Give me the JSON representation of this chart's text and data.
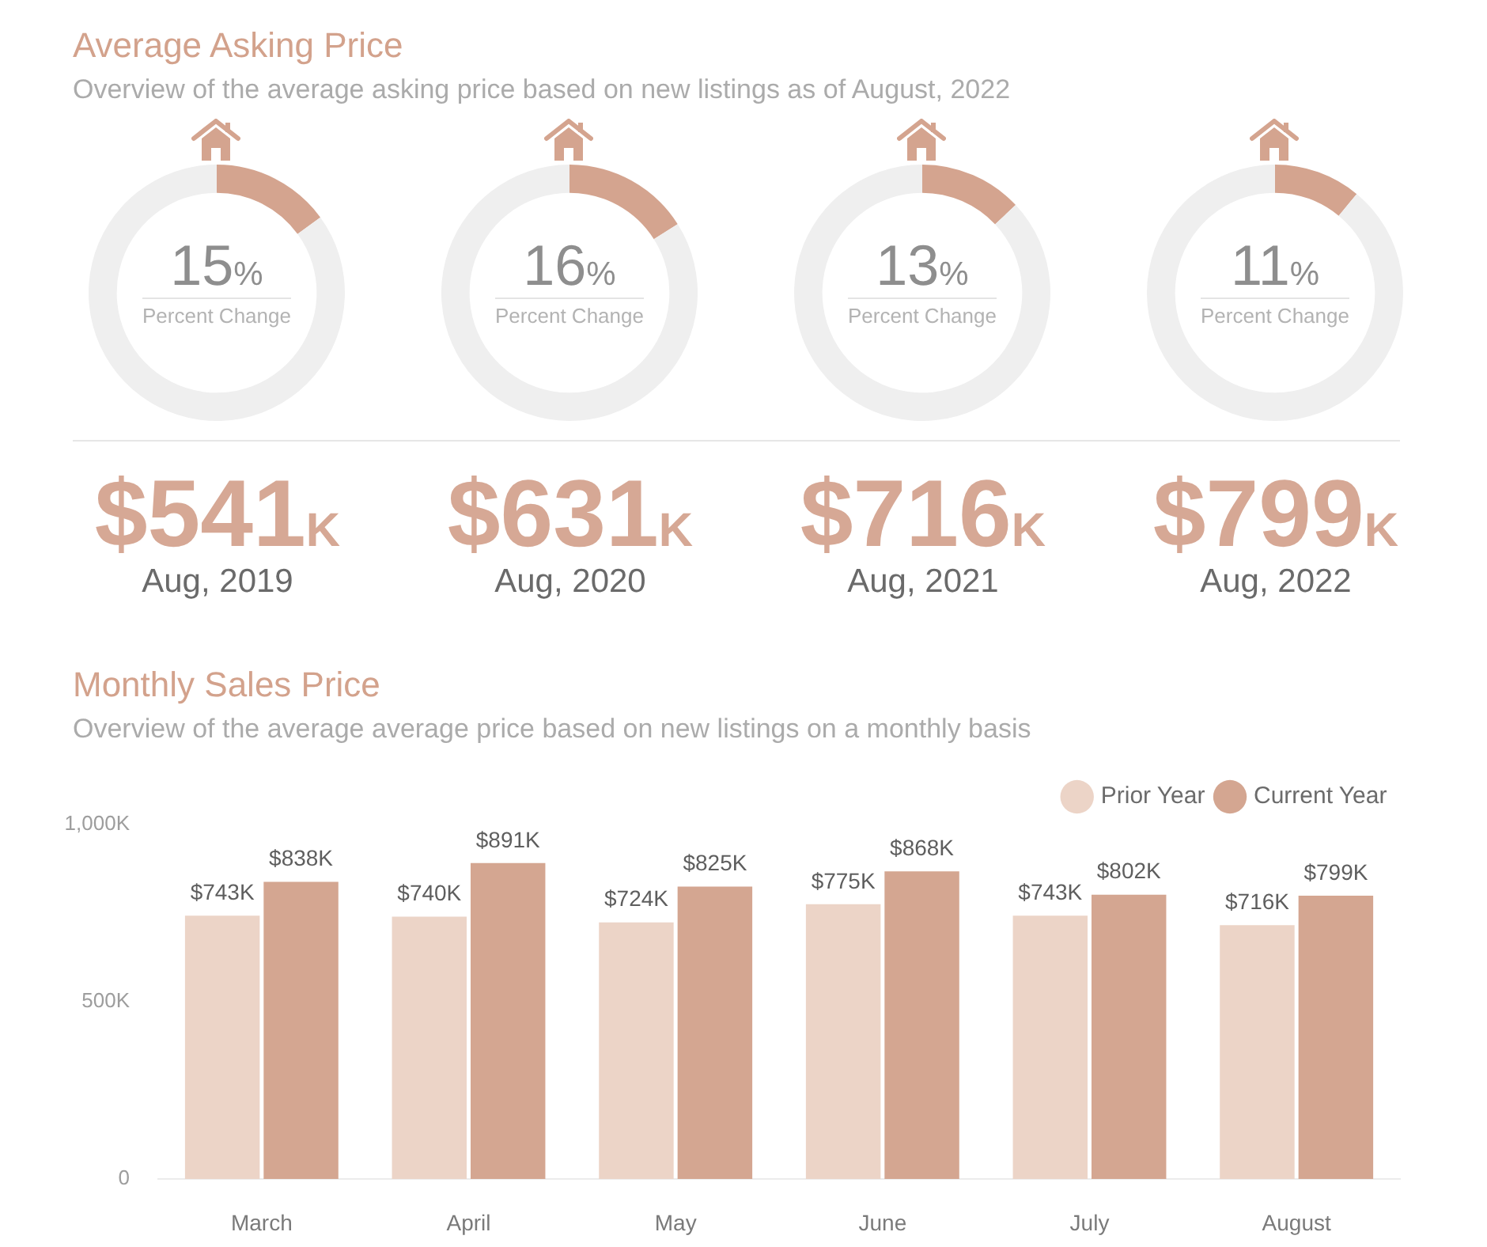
{
  "chart_data": [
    {
      "type": "other",
      "title": "Average Asking Price",
      "subtitle": "Overview of the average asking price based on new listings as of August, 2022"
    },
    {
      "type": "donut",
      "categories": [
        null,
        null
      ],
      "values": [
        15,
        85
      ],
      "colors": [
        "#d4a48f",
        "#efefef"
      ],
      "value_labels": [
        "15%",
        null
      ],
      "annotations": [
        "Percent Change"
      ]
    },
    {
      "type": "donut",
      "categories": [
        null,
        null
      ],
      "values": [
        16,
        84
      ],
      "colors": [
        "#d4a48f",
        "#efefef"
      ],
      "value_labels": [
        "16%",
        null
      ],
      "annotations": [
        "Percent Change"
      ]
    },
    {
      "type": "donut",
      "categories": [
        null,
        null
      ],
      "values": [
        13,
        87
      ],
      "colors": [
        "#d4a48f",
        "#efefef"
      ],
      "value_labels": [
        "13%",
        null
      ],
      "annotations": [
        "Percent Change"
      ]
    },
    {
      "type": "donut",
      "categories": [
        null,
        null
      ],
      "values": [
        11,
        89
      ],
      "colors": [
        "#d4a48f",
        "#efefef"
      ],
      "value_labels": [
        "11%",
        null
      ],
      "annotations": [
        "Percent Change"
      ]
    },
    {
      "type": "other",
      "categories": [
        "Aug, 2019",
        "Aug, 2020",
        "Aug, 2021",
        "Aug, 2022"
      ],
      "values": [
        541,
        631,
        716,
        799
      ],
      "value_labels": [
        "$541K",
        "$631K",
        "$716K",
        "$799K"
      ]
    },
    {
      "type": "bar",
      "title": "Monthly Sales Price",
      "subtitle": "Overview of the average average price based on new listings on a monthly basis",
      "categories": [
        "March",
        "April",
        "May",
        "June",
        "July",
        "August"
      ],
      "series": [
        {
          "name": "Prior Year",
          "color": "#ecd4c7",
          "values": [
            743,
            740,
            724,
            775,
            743,
            716
          ],
          "value_labels": [
            "$743K",
            "$740K",
            "$724K",
            "$775K",
            "$743K",
            "$716K"
          ]
        },
        {
          "name": "Current Year",
          "color": "#d4a691",
          "values": [
            838,
            891,
            825,
            868,
            802,
            799
          ],
          "value_labels": [
            "$838K",
            "$891K",
            "$825K",
            "$868K",
            "$802K",
            "$799K"
          ]
        }
      ],
      "ylim": [
        0,
        1000
      ],
      "yticks": [
        0,
        {
          "value": 500,
          "label": "500K"
        },
        {
          "value": 1000,
          "label": "1,000K"
        }
      ],
      "legend": "top right"
    }
  ]
}
